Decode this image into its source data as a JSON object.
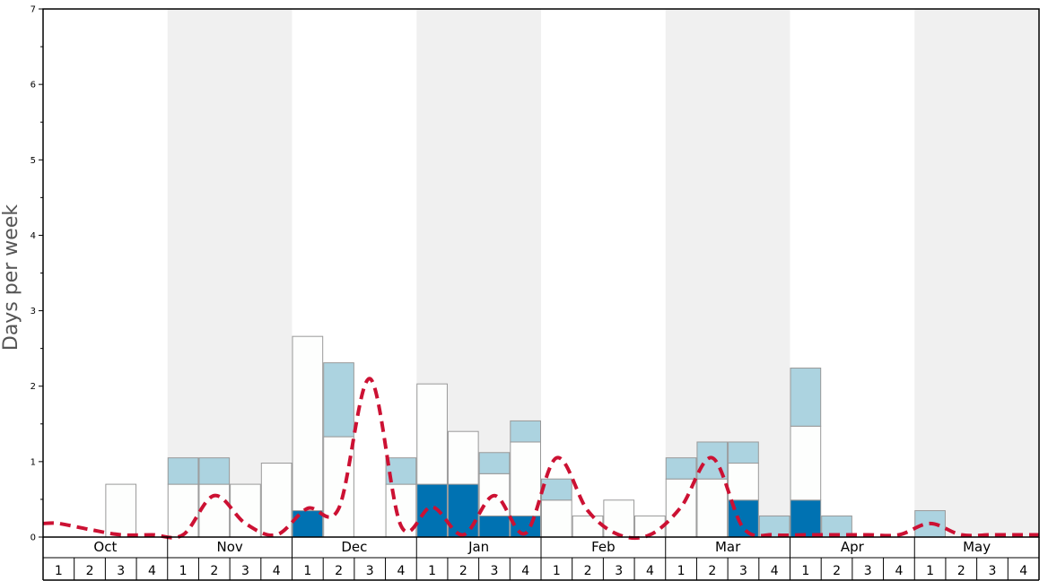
{
  "chart_data": {
    "type": "bar",
    "ylabel": "Days per week",
    "ylim": [
      0,
      7
    ],
    "y_ticks": [
      "0",
      "1",
      "2",
      "3",
      "4",
      "5",
      "6",
      "7"
    ],
    "months": [
      "Oct",
      "Nov",
      "Dec",
      "Jan",
      "Feb",
      "Mar",
      "Apr",
      "May"
    ],
    "weeks": [
      "1",
      "2",
      "3",
      "4"
    ],
    "month_bands": [
      "white",
      "gray",
      "white",
      "gray",
      "white",
      "gray",
      "white",
      "gray"
    ],
    "colors": {
      "dark_segment": "#0072b2",
      "light_segment": "#acd3e0",
      "white_segment": "#fdfefd",
      "bar_border": "#999999",
      "line": "#cc1133",
      "band_gray": "#f0f0f0",
      "frame": "#000000"
    },
    "series": [
      {
        "key": "dark",
        "values": [
          0,
          0,
          0,
          0,
          0,
          0,
          0,
          0,
          0.35,
          0,
          0,
          0,
          0.7,
          0.7,
          0.28,
          0.28,
          0,
          0,
          0,
          0,
          0,
          0,
          0.49,
          0,
          0.49,
          0,
          0,
          0,
          0,
          0,
          0,
          0
        ]
      },
      {
        "key": "white",
        "values": [
          0,
          0,
          0.7,
          0,
          0.7,
          0.7,
          0.7,
          0.98,
          2.31,
          1.33,
          0,
          0.7,
          1.33,
          0.7,
          0.56,
          0.98,
          0.49,
          0.28,
          0.49,
          0.28,
          0.77,
          0.77,
          0.49,
          0,
          0.98,
          0,
          0,
          0,
          0,
          0,
          0,
          0
        ]
      },
      {
        "key": "light",
        "values": [
          0,
          0,
          0,
          0,
          0.35,
          0.35,
          0,
          0,
          0,
          0.98,
          0,
          0.35,
          0,
          0,
          0.28,
          0.28,
          0.28,
          0,
          0,
          0,
          0.28,
          0.49,
          0.28,
          0.28,
          0.77,
          0.28,
          0,
          0,
          0.35,
          0,
          0,
          0
        ]
      }
    ],
    "line": {
      "values": [
        0.18,
        0.1,
        0.03,
        0.03,
        0.03,
        0.55,
        0.18,
        0.03,
        0.38,
        0.38,
        2.1,
        0.15,
        0.4,
        0.03,
        0.55,
        0.05,
        1.05,
        0.35,
        0.03,
        0.03,
        0.4,
        1.05,
        0.12,
        0.03,
        0.03,
        0.03,
        0.03,
        0.03,
        0.18,
        0.03,
        0.03,
        0.03
      ]
    }
  }
}
